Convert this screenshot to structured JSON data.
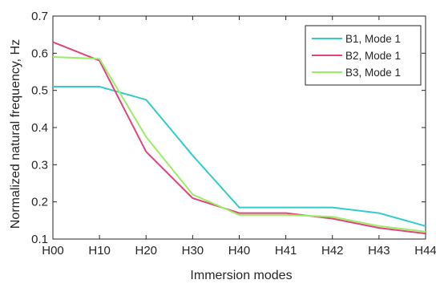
{
  "chart_data": {
    "type": "line",
    "title": "",
    "xlabel": "Immersion modes",
    "ylabel": "Normalized natural frequency, Hz",
    "categories": [
      "H00",
      "H10",
      "H20",
      "H30",
      "H40",
      "H41",
      "H42",
      "H43",
      "H44"
    ],
    "ylim": [
      0.1,
      0.7
    ],
    "yticks": [
      "0.1",
      "0.2",
      "0.3",
      "0.4",
      "0.5",
      "0.6",
      "0.7"
    ],
    "grid": false,
    "legend_position": "top-right",
    "series": [
      {
        "name": "B1, Mode 1",
        "color": "#33cccc",
        "values": [
          0.51,
          0.51,
          0.475,
          0.325,
          0.185,
          0.185,
          0.185,
          0.17,
          0.135
        ]
      },
      {
        "name": "B2, Mode 1",
        "color": "#e0457b",
        "values": [
          0.63,
          0.58,
          0.335,
          0.21,
          0.17,
          0.17,
          0.155,
          0.13,
          0.115
        ]
      },
      {
        "name": "B3, Mode 1",
        "color": "#99ee66",
        "values": [
          0.59,
          0.585,
          0.375,
          0.22,
          0.165,
          0.165,
          0.16,
          0.135,
          0.12
        ]
      }
    ]
  }
}
